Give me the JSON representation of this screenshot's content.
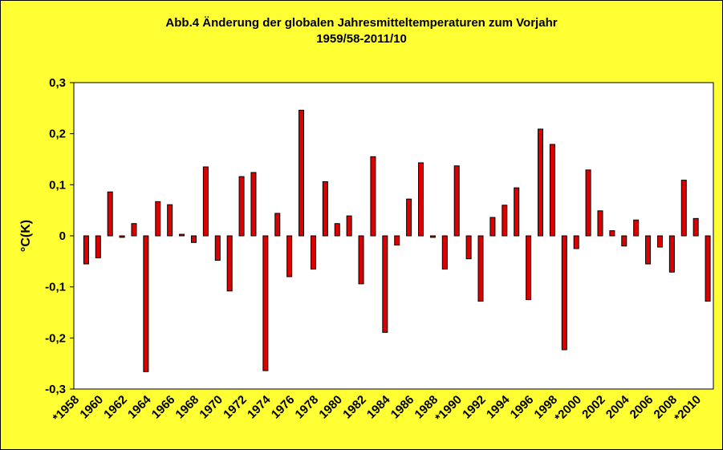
{
  "chart_data": {
    "type": "bar",
    "title_line1": "Abb.4 Änderung der globalen Jahresmitteltemperaturen zum Vorjahr",
    "title_line2": "1959/58-2011/10",
    "xlabel": "",
    "ylabel": "°C(K)",
    "ylim": [
      -0.3,
      0.3
    ],
    "y_ticks": [
      0.3,
      0.2,
      0.1,
      0,
      -0.1,
      -0.2,
      -0.3
    ],
    "y_tick_labels": [
      "0,3",
      "0,2",
      "0,1",
      "0",
      "-0,1",
      "-0,2",
      "-0,3"
    ],
    "x_tick_labels": [
      "*1958",
      "1960",
      "1962",
      "1964",
      "1966",
      "1968",
      "1970",
      "1972",
      "1974",
      "1976",
      "1978",
      "1980",
      "1982",
      "1984",
      "1986",
      "1988",
      "*1990",
      "1992",
      "1994",
      "1996",
      "1998",
      "*2000",
      "2002",
      "2004",
      "2006",
      "2008",
      "*2010"
    ],
    "bar_color": "#dd0000",
    "plot_background": "#ffffff",
    "page_background": "#ffff33",
    "grid": false,
    "legend": "none",
    "values": [
      -0.055,
      -0.043,
      0.086,
      -0.003,
      0.024,
      -0.266,
      0.067,
      0.061,
      0.003,
      -0.013,
      0.135,
      -0.048,
      -0.108,
      0.116,
      0.124,
      -0.264,
      0.044,
      -0.08,
      0.246,
      -0.065,
      0.106,
      0.024,
      0.039,
      -0.094,
      0.155,
      -0.189,
      -0.018,
      0.072,
      0.143,
      -0.003,
      -0.065,
      0.137,
      -0.045,
      -0.128,
      0.036,
      0.06,
      0.094,
      -0.125,
      0.209,
      0.179,
      -0.223,
      -0.025,
      0.129,
      0.049,
      0.01,
      -0.02,
      0.031,
      -0.055,
      -0.022,
      -0.071,
      0.109,
      0.034,
      -0.128
    ]
  }
}
